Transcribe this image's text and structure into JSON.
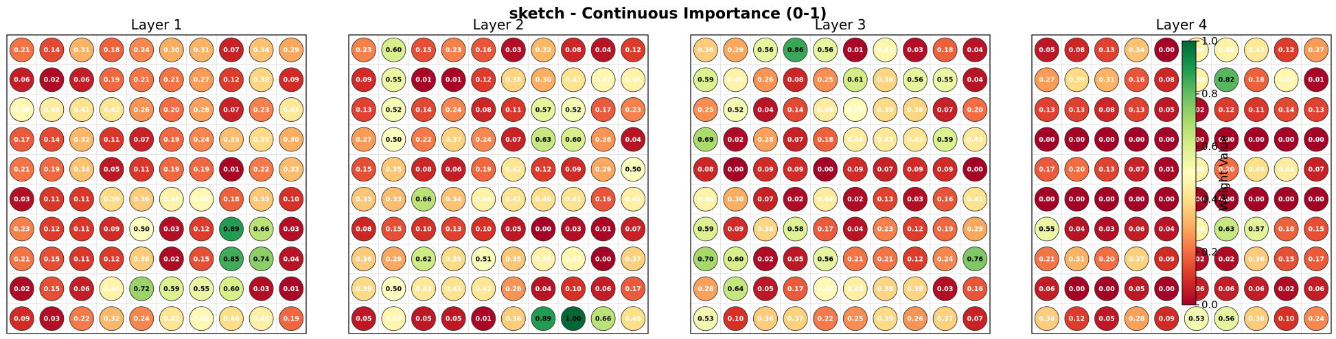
{
  "figure": {
    "title": "sketch - Continuous Importance (0-1)"
  },
  "colorbar": {
    "label": "Weight Value",
    "ticks": [
      "0.0",
      "0.2",
      "0.4",
      "0.6",
      "0.8",
      "1.0"
    ],
    "colormap": "RdYlGn",
    "range": [
      0,
      1
    ]
  },
  "chart_data": [
    {
      "type": "heatmap",
      "title": "Layer 1",
      "rows": 10,
      "cols": 10,
      "values": [
        [
          0.21,
          0.14,
          0.31,
          0.18,
          0.24,
          0.3,
          0.31,
          0.07,
          0.34,
          0.29
        ],
        [
          0.06,
          0.02,
          0.06,
          0.19,
          0.21,
          0.21,
          0.27,
          0.12,
          0.38,
          0.09
        ],
        [
          0.48,
          0.44,
          0.41,
          0.42,
          0.26,
          0.2,
          0.28,
          0.07,
          0.23,
          0.43
        ],
        [
          0.17,
          0.14,
          0.32,
          0.11,
          0.07,
          0.19,
          0.24,
          0.33,
          0.39,
          0.3
        ],
        [
          0.21,
          0.19,
          0.34,
          0.05,
          0.11,
          0.19,
          0.19,
          0.01,
          0.22,
          0.33
        ],
        [
          0.03,
          0.11,
          0.11,
          0.39,
          0.36,
          0.46,
          0.48,
          0.18,
          0.35,
          0.1
        ],
        [
          0.23,
          0.12,
          0.11,
          0.09,
          0.5,
          0.03,
          0.12,
          0.89,
          0.66,
          0.03
        ],
        [
          0.21,
          0.15,
          0.11,
          0.12,
          0.36,
          0.02,
          0.15,
          0.85,
          0.74,
          0.04
        ],
        [
          0.02,
          0.15,
          0.06,
          0.46,
          0.72,
          0.59,
          0.55,
          0.6,
          0.03,
          0.01
        ],
        [
          0.09,
          0.03,
          0.22,
          0.32,
          0.24,
          0.42,
          0.48,
          0.4,
          0.45,
          0.19
        ]
      ]
    },
    {
      "type": "heatmap",
      "title": "Layer 2",
      "rows": 10,
      "cols": 10,
      "values": [
        [
          0.23,
          0.6,
          0.15,
          0.23,
          0.16,
          0.03,
          0.32,
          0.08,
          0.04,
          0.12
        ],
        [
          0.09,
          0.55,
          0.01,
          0.01,
          0.12,
          0.38,
          0.3,
          0.41,
          0.47,
          0.46
        ],
        [
          0.13,
          0.52,
          0.14,
          0.24,
          0.08,
          0.11,
          0.57,
          0.52,
          0.17,
          0.23
        ],
        [
          0.27,
          0.5,
          0.22,
          0.37,
          0.24,
          0.07,
          0.63,
          0.6,
          0.26,
          0.04
        ],
        [
          0.15,
          0.35,
          0.08,
          0.06,
          0.19,
          0.42,
          0.12,
          0.09,
          0.29,
          0.5
        ],
        [
          0.35,
          0.33,
          0.66,
          0.34,
          0.46,
          0.41,
          0.4,
          0.41,
          0.16,
          0.45
        ],
        [
          0.08,
          0.15,
          0.1,
          0.13,
          0.1,
          0.05,
          0.0,
          0.03,
          0.01,
          0.07
        ],
        [
          0.36,
          0.29,
          0.62,
          0.39,
          0.51,
          0.35,
          0.46,
          0.47,
          0.0,
          0.37
        ],
        [
          0.39,
          0.5,
          0.43,
          0.41,
          0.42,
          0.26,
          0.04,
          0.1,
          0.06,
          0.17
        ],
        [
          0.05,
          0.47,
          0.05,
          0.05,
          0.01,
          0.36,
          0.89,
          1.0,
          0.66,
          0.4
        ]
      ]
    },
    {
      "type": "heatmap",
      "title": "Layer 3",
      "rows": 10,
      "cols": 10,
      "values": [
        [
          0.36,
          0.29,
          0.56,
          0.86,
          0.56,
          0.01,
          0.47,
          0.03,
          0.18,
          0.04
        ],
        [
          0.59,
          0.46,
          0.26,
          0.08,
          0.25,
          0.61,
          0.38,
          0.56,
          0.55,
          0.04
        ],
        [
          0.25,
          0.52,
          0.04,
          0.14,
          0.44,
          0.49,
          0.39,
          0.38,
          0.07,
          0.2
        ],
        [
          0.69,
          0.02,
          0.28,
          0.07,
          0.18,
          0.44,
          0.43,
          0.42,
          0.59,
          0.43
        ],
        [
          0.08,
          0.0,
          0.09,
          0.09,
          0.0,
          0.09,
          0.07,
          0.09,
          0.09,
          0.0
        ],
        [
          0.46,
          0.3,
          0.07,
          0.02,
          0.44,
          0.02,
          0.13,
          0.03,
          0.16,
          0.41
        ],
        [
          0.59,
          0.09,
          0.38,
          0.58,
          0.17,
          0.04,
          0.23,
          0.12,
          0.19,
          0.29
        ],
        [
          0.7,
          0.6,
          0.02,
          0.05,
          0.56,
          0.21,
          0.21,
          0.12,
          0.24,
          0.76
        ],
        [
          0.28,
          0.64,
          0.05,
          0.17,
          0.48,
          0.45,
          0.38,
          0.38,
          0.03,
          0.16
        ],
        [
          0.53,
          0.1,
          0.36,
          0.37,
          0.22,
          0.25,
          0.39,
          0.26,
          0.37,
          0.07
        ]
      ]
    },
    {
      "type": "heatmap",
      "title": "Layer 4",
      "rows": 10,
      "cols": 10,
      "values": [
        [
          0.05,
          0.08,
          0.13,
          0.34,
          0.0,
          0.46,
          0.46,
          0.43,
          0.12,
          0.27
        ],
        [
          0.27,
          0.39,
          0.31,
          0.16,
          0.08,
          0.46,
          0.82,
          0.18,
          0.47,
          0.01
        ],
        [
          0.13,
          0.13,
          0.08,
          0.13,
          0.05,
          0.02,
          0.12,
          0.11,
          0.14,
          0.13
        ],
        [
          0.0,
          0.0,
          0.0,
          0.0,
          0.0,
          0.0,
          0.0,
          0.0,
          0.0,
          0.0
        ],
        [
          0.17,
          0.2,
          0.13,
          0.07,
          0.01,
          0.46,
          0.2,
          0.4,
          0.44,
          0.07
        ],
        [
          0.0,
          0.0,
          0.0,
          0.0,
          0.0,
          0.0,
          0.0,
          0.0,
          0.0,
          0.0
        ],
        [
          0.55,
          0.04,
          0.03,
          0.06,
          0.04,
          0.46,
          0.63,
          0.57,
          0.18,
          0.15
        ],
        [
          0.21,
          0.31,
          0.2,
          0.37,
          0.09,
          0.02,
          0.02,
          0.36,
          0.15,
          0.17
        ],
        [
          0.06,
          0.0,
          0.0,
          0.05,
          0.0,
          0.06,
          0.06,
          0.06,
          0.02,
          0.06
        ],
        [
          0.36,
          0.12,
          0.05,
          0.28,
          0.09,
          0.53,
          0.56,
          0.36,
          0.1,
          0.24
        ]
      ]
    }
  ]
}
